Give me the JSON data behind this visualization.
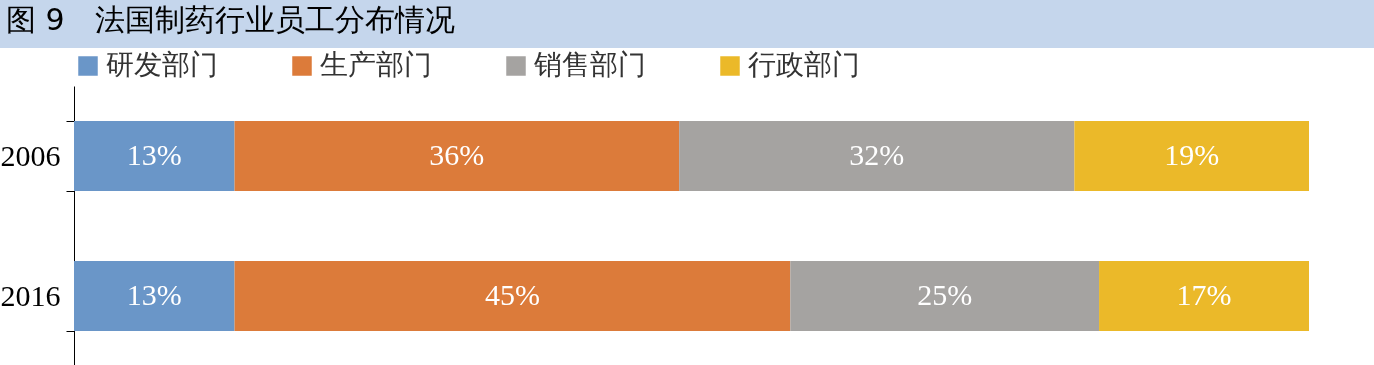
{
  "chart_data": {
    "type": "bar",
    "orientation": "horizontal",
    "stacked": true,
    "title": "图 9　法国制药行业员工分布情况",
    "categories": [
      "2006",
      "2016"
    ],
    "legend": "top",
    "series": [
      {
        "name": "研发部门",
        "color": "#6a96c8",
        "values": [
          13,
          13
        ],
        "value_labels": [
          "13%",
          "13%"
        ]
      },
      {
        "name": "生产部门",
        "color": "#dc7b3a",
        "values": [
          36,
          45
        ],
        "value_labels": [
          "36%",
          "45%"
        ]
      },
      {
        "name": "销售部门",
        "color": "#a5a3a1",
        "values": [
          32,
          25
        ],
        "value_labels": [
          "32%",
          "25%"
        ]
      },
      {
        "name": "行政部门",
        "color": "#ebb929",
        "values": [
          19,
          17
        ],
        "value_labels": [
          "19%",
          "17%"
        ]
      }
    ]
  }
}
